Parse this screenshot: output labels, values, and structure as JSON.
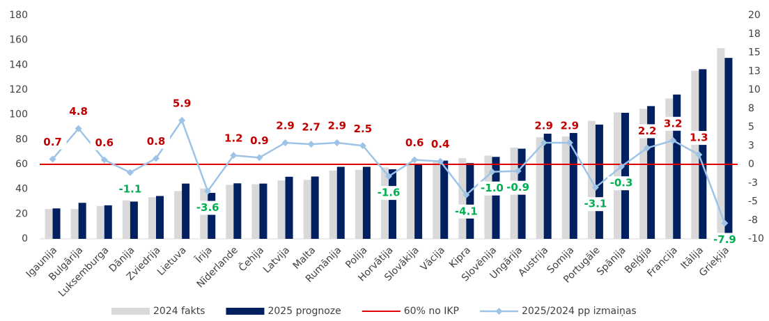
{
  "chart_data": {
    "type": "bar-line",
    "categories": [
      "Igaunija",
      "Bulgārija",
      "Luksemburga",
      "Dānija",
      "Zviedrija",
      "Lietuva",
      "Īrija",
      "Nīderlande",
      "Čehija",
      "Latvija",
      "Malta",
      "Rumānija",
      "Polija",
      "Horvātija",
      "Slovākija",
      "Vācija",
      "Kipra",
      "Slovēnija",
      "Ungārija",
      "Austrija",
      "Somija",
      "Portugāle",
      "Spānija",
      "Beļģija",
      "Francija",
      "Itālija",
      "Grieķija"
    ],
    "series": [
      {
        "name": "2024 fakts",
        "type": "bar",
        "color": "#d9d9d9",
        "values": [
          24,
          24,
          26.5,
          31,
          33.5,
          38.5,
          40.5,
          43.5,
          44,
          47,
          47.5,
          55,
          55.5,
          57.5,
          59.5,
          62.5,
          65,
          67,
          73.5,
          81.8,
          82.5,
          95,
          101.8,
          104.7,
          113,
          135.3,
          153.6
        ]
      },
      {
        "name": "2025 prognoze",
        "type": "bar",
        "color": "#002060",
        "values": [
          24.5,
          29,
          27,
          30,
          34.5,
          44.5,
          37,
          44.7,
          44.5,
          50,
          50.2,
          58,
          58,
          56,
          60.1,
          63,
          61,
          66,
          72.6,
          84.7,
          85.4,
          92,
          101.5,
          106.9,
          116.2,
          136.6,
          145.7
        ]
      },
      {
        "name": "2025/2024 pp izmaiņas",
        "type": "line",
        "axis": "y2",
        "color": "#9dc3e6",
        "values": [
          0.7,
          4.8,
          0.6,
          -1.1,
          0.8,
          5.9,
          -3.6,
          1.2,
          0.9,
          2.9,
          2.7,
          2.9,
          2.5,
          -1.6,
          0.6,
          0.4,
          -4.1,
          -1.0,
          -0.9,
          2.9,
          2.9,
          -3.1,
          -0.3,
          2.2,
          3.2,
          1.3,
          -7.9
        ],
        "value_labels": [
          "0.7",
          "4.8",
          "0.6",
          "-1.1",
          "0.8",
          "5.9",
          "-3.6",
          "1.2",
          "0.9",
          "2.9",
          "2.7",
          "2.9",
          "2.5",
          "-1.6",
          "0.6",
          "0.4",
          "-4.1",
          "-1.0",
          "-0.9",
          "2.9",
          "2.9",
          "-3.1",
          "-0.3",
          "2.2",
          "3.2",
          "1.3",
          "-7.9"
        ],
        "positive_label_color": "#c00000",
        "negative_label_color": "#00b050"
      }
    ],
    "threshold": {
      "name": "60% no IKP",
      "value": 60,
      "color": "#e00000"
    },
    "ylim": [
      0,
      180
    ],
    "yticks": [
      0,
      20,
      40,
      60,
      80,
      100,
      120,
      140,
      160,
      180
    ],
    "y2lim": [
      -10,
      20
    ],
    "y2ticks": [
      {
        "value": -10,
        "label": "-10"
      },
      {
        "value": -7.5,
        "label": "-8"
      },
      {
        "value": -5,
        "label": "-5"
      },
      {
        "value": -2.5,
        "label": "-3"
      },
      0,
      {
        "value": 2.5,
        "label": "3"
      },
      5,
      {
        "value": 7.5,
        "label": "8"
      },
      10,
      {
        "value": 12.5,
        "label": "13"
      },
      15,
      {
        "value": 17.5,
        "label": "18"
      },
      20
    ],
    "grid": false,
    "legend": "bottom"
  }
}
